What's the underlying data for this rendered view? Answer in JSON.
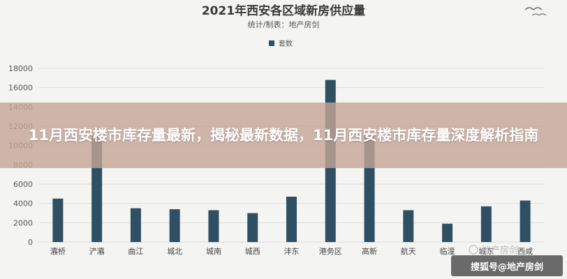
{
  "headline": "11月西安楼市库存量最新，揭秘最新数据，11月西安楼市库存量深度解析指南",
  "watermark_text": "地产房剑",
  "badge_text": "搜狐号@地产房剑",
  "bar_color": "#2f4f62",
  "chart_data": {
    "type": "bar",
    "title": "2021年西安各区域新房供应量",
    "subtitle": "统计/制表：地产房剑",
    "legend": {
      "entries": [
        "套数"
      ],
      "placement": "top-center"
    },
    "categories": [
      "灞桥",
      "浐灞",
      "曲江",
      "城北",
      "城南",
      "城西",
      "沣东",
      "港务区",
      "高新",
      "航天",
      "临潼",
      "城东",
      "西咸"
    ],
    "series": [
      {
        "name": "套数",
        "values": [
          4500,
          11000,
          3500,
          3400,
          3300,
          3000,
          4700,
          16800,
          11000,
          3300,
          1900,
          3700,
          4300
        ]
      }
    ],
    "yticks": [
      0,
      2000,
      4000,
      6000,
      8000,
      10000,
      12000,
      14000,
      16000,
      18000
    ],
    "ylim": [
      0,
      18000
    ],
    "grid": true,
    "xlabel": "",
    "ylabel": ""
  }
}
